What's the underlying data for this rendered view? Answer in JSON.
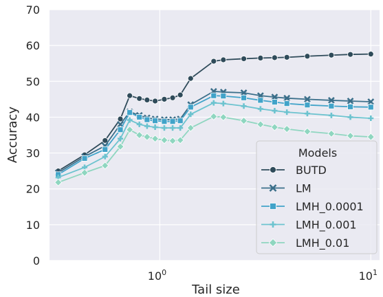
{
  "chart_data": {
    "type": "line",
    "xlabel": "Tail size",
    "ylabel": "Accuracy",
    "xscale": "log",
    "xlim": [
      0.3,
      11
    ],
    "ylim": [
      0,
      70
    ],
    "yticks": [
      0,
      10,
      20,
      30,
      40,
      50,
      60,
      70
    ],
    "xticks": [
      {
        "value": 1,
        "base": "10",
        "exp": "0"
      },
      {
        "value": 10,
        "base": "10",
        "exp": "1"
      }
    ],
    "grid": true,
    "legend": {
      "title": "Models",
      "placement": "lower-right"
    },
    "x": [
      0.33,
      0.44,
      0.55,
      0.65,
      0.72,
      0.8,
      0.87,
      0.95,
      1.05,
      1.15,
      1.25,
      1.4,
      1.8,
      2.0,
      2.5,
      3.0,
      3.5,
      4.0,
      5.0,
      6.5,
      8.0,
      10.0
    ],
    "series": [
      {
        "name": "BUTD",
        "color": "#2f4b5a",
        "marker": "circle",
        "values": [
          25.0,
          29.5,
          33.5,
          39.5,
          46.0,
          45.2,
          44.8,
          44.5,
          45.0,
          45.4,
          46.2,
          50.8,
          55.6,
          56.0,
          56.3,
          56.5,
          56.6,
          56.7,
          57.0,
          57.3,
          57.5,
          57.6
        ]
      },
      {
        "name": "LM",
        "color": "#3b6f8a",
        "marker": "x",
        "values": [
          24.5,
          29.0,
          32.0,
          38.0,
          41.5,
          40.5,
          39.8,
          39.5,
          39.3,
          39.3,
          39.5,
          43.5,
          47.2,
          47.0,
          46.8,
          46.0,
          45.6,
          45.3,
          45.0,
          44.7,
          44.5,
          44.3
        ]
      },
      {
        "name": "LMH_0.0001",
        "color": "#41a3c9",
        "marker": "square",
        "values": [
          24.0,
          28.5,
          31.0,
          36.5,
          41.3,
          40.0,
          39.3,
          39.0,
          38.8,
          38.8,
          39.0,
          42.8,
          46.0,
          45.9,
          45.4,
          44.7,
          44.2,
          43.8,
          43.4,
          43.1,
          42.9,
          42.8
        ]
      },
      {
        "name": "LMH_0.001",
        "color": "#6cc3cf",
        "marker": "plus",
        "values": [
          23.2,
          26.0,
          29.0,
          34.0,
          39.2,
          38.0,
          37.5,
          37.2,
          37.0,
          37.0,
          37.0,
          40.8,
          44.0,
          43.8,
          43.1,
          42.3,
          41.8,
          41.4,
          41.0,
          40.5,
          40.0,
          39.7
        ]
      },
      {
        "name": "LMH_0.01",
        "color": "#8fd6c0",
        "marker": "diamond",
        "values": [
          21.8,
          24.5,
          26.5,
          31.8,
          36.5,
          35.0,
          34.5,
          34.0,
          33.6,
          33.4,
          33.6,
          37.0,
          40.2,
          40.0,
          39.0,
          38.0,
          37.2,
          36.7,
          36.0,
          35.4,
          34.8,
          34.5
        ]
      }
    ]
  }
}
